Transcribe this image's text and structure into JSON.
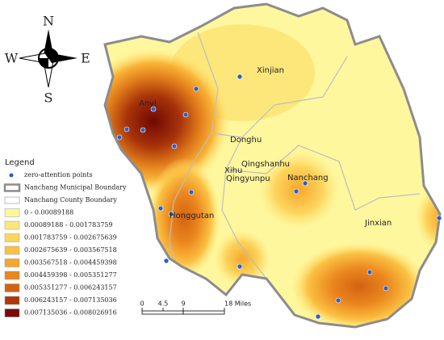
{
  "compass": {
    "n": "N",
    "s": "S",
    "e": "E",
    "w": "W"
  },
  "legend": {
    "title": "Legend",
    "items": [
      {
        "label": "zero-attention points",
        "kind": "point",
        "color": "#2a5fc9"
      },
      {
        "label": "Nanchang Municipal Boundary",
        "kind": "thick-line",
        "color": "#8c8c8c"
      },
      {
        "label": "Nanchang County Boundary",
        "kind": "thin-line",
        "color": "#bdbdbd"
      },
      {
        "label": "0 - 0.00089188",
        "kind": "fill",
        "color": "#fff79e"
      },
      {
        "label": "0.00089188 - 0.001783759",
        "kind": "fill",
        "color": "#fde77a"
      },
      {
        "label": "0.001783759 - 0.002675639",
        "kind": "fill",
        "color": "#fdd55d"
      },
      {
        "label": "0.002675639 - 0.003567518",
        "kind": "fill",
        "color": "#fbc143"
      },
      {
        "label": "0.003567518 - 0.004459398",
        "kind": "fill",
        "color": "#f7a62b"
      },
      {
        "label": "0.004459398 - 0.005351277",
        "kind": "fill",
        "color": "#eb861d"
      },
      {
        "label": "0.005351277 - 0.006243157",
        "kind": "fill",
        "color": "#d26313"
      },
      {
        "label": "0.006243157 - 0.007135036",
        "kind": "fill",
        "color": "#ae380b"
      },
      {
        "label": "0.007135036 - 0.008026916",
        "kind": "fill",
        "color": "#790a05"
      }
    ]
  },
  "places": {
    "xinjian": "Xinjian",
    "anyi": "Anyi",
    "donghu": "Donghu",
    "qingshanhu": "Qingshanhu",
    "xihu": "Xihu",
    "qingyunpu": "Qingyunpu",
    "nanchang": "Nanchang",
    "honggutan": "Honggutan",
    "jinxian": "Jinxian"
  },
  "scale": {
    "labels": [
      "0",
      "4.5",
      "9",
      "18 Miles"
    ]
  }
}
